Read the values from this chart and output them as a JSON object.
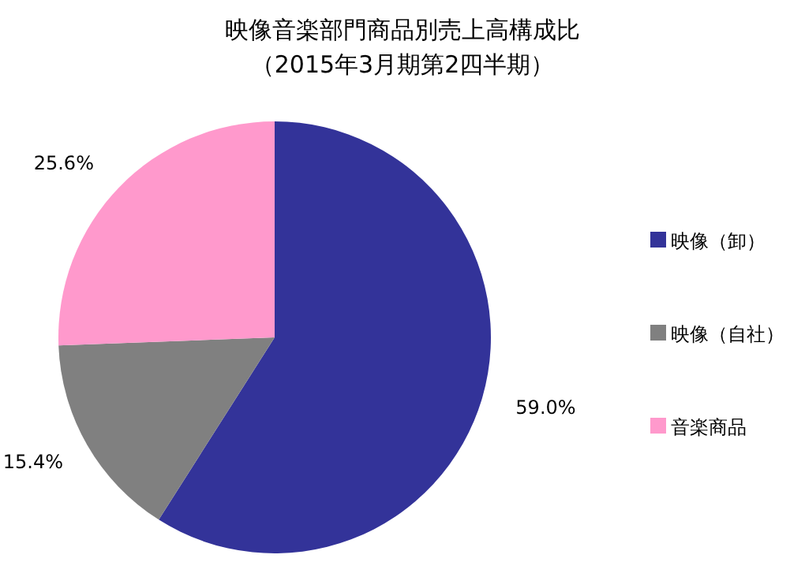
{
  "chart_data": {
    "type": "pie",
    "title": "映像音楽部門商品別売上高構成比",
    "subtitle": "（2015年3月期第2四半期）",
    "categories": [
      "映像（卸）",
      "映像（自社）",
      "音楽商品"
    ],
    "values": [
      59.0,
      15.4,
      25.6
    ],
    "value_labels": [
      "59.0%",
      "15.4%",
      "25.6%"
    ],
    "colors": [
      "#333399",
      "#808080",
      "#ff99cc"
    ],
    "legend": "right"
  }
}
